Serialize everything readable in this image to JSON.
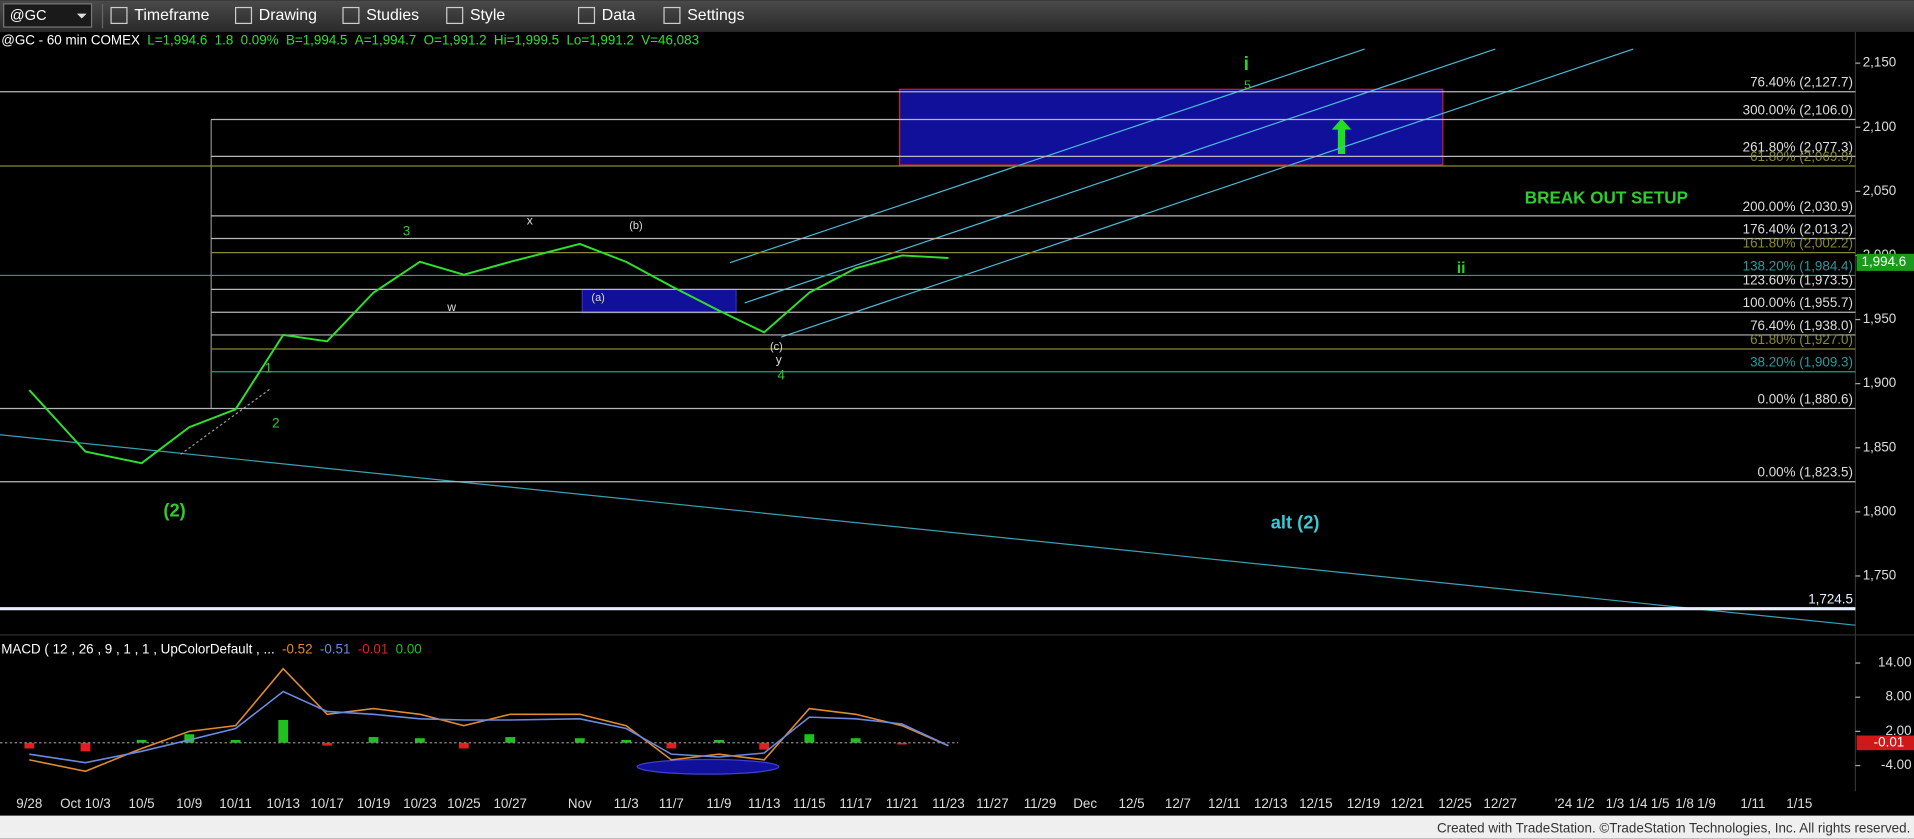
{
  "toolbar": {
    "symbol": "@GC",
    "items": [
      "Timeframe",
      "Drawing",
      "Studies",
      "Style",
      "Data",
      "Settings"
    ]
  },
  "chart_data": {
    "type": "line",
    "symbol_line": "@GC - 60 min  COMEX",
    "quote": [
      "L=1,994.6",
      "1.8",
      "0.09%",
      "B=1,994.5",
      "A=1,994.7",
      "O=1,991.2",
      "Hi=1,999.5",
      "Lo=1,991.2",
      "V=46,083"
    ],
    "categories": [
      "9/28",
      "Oct 10/3",
      "10/5",
      "10/9",
      "10/11",
      "10/13",
      "10/17",
      "10/19",
      "10/23",
      "10/25",
      "10/27",
      "Nov",
      "11/3",
      "11/7",
      "11/9",
      "11/13",
      "11/15",
      "11/17",
      "11/21",
      "11/23",
      "11/27",
      "11/29",
      "Dec",
      "12/5",
      "12/7",
      "12/11",
      "12/13",
      "12/15",
      "12/19",
      "12/21",
      "12/25",
      "12/27",
      "'24 1/2",
      "1/3",
      "1/4",
      "1/5",
      "1/8",
      "1/9",
      "1/11",
      "1/15"
    ],
    "series": [
      {
        "color": "#2ee02e",
        "values": [
          1895,
          1847,
          1838,
          1866,
          1880,
          1938,
          1933,
          1971,
          1995,
          1985,
          1995,
          2009,
          1995,
          1976,
          1957,
          1940,
          1971,
          1990,
          2000,
          1998,
          null,
          null,
          null,
          null,
          null,
          null,
          null,
          null,
          null,
          null,
          null,
          null,
          null,
          null,
          null,
          null,
          null,
          null,
          null,
          null
        ]
      }
    ],
    "ylim": [
      1704,
      2161
    ],
    "yticks": [
      {
        "value": 1750,
        "label": "1,750"
      },
      {
        "value": 1800,
        "label": "1,800"
      },
      {
        "value": 1850,
        "label": "1,850"
      },
      {
        "value": 1900,
        "label": "1,900"
      },
      {
        "value": 1950,
        "label": "1,950"
      },
      {
        "value": 2000,
        "label": "2,000"
      },
      {
        "value": 2050,
        "label": "2,050"
      },
      {
        "value": 2100,
        "label": "2,100"
      },
      {
        "value": 2150,
        "label": "2,150"
      }
    ],
    "last_price": {
      "value": 1994.6,
      "label": "1,994.6"
    },
    "levels": [
      {
        "value": 2127.7,
        "label": "76.40% (2,127.7)",
        "color": "#b8b8b8"
      },
      {
        "value": 2106.0,
        "label": "300.00% (2,106.0)",
        "color": "#b8b8b8"
      },
      {
        "value": 2077.3,
        "label": "261.80% (2,077.3)",
        "color": "#b8b8b8"
      },
      {
        "value": 2069.8,
        "label": "61.80% (2,069.8)",
        "color": "#8a8a30"
      },
      {
        "value": 2030.9,
        "label": "200.00% (2,030.9)",
        "color": "#b8b8b8"
      },
      {
        "value": 2013.2,
        "label": "176.40% (2,013.2)",
        "color": "#b8b8b8"
      },
      {
        "value": 2002.2,
        "label": "161.80% (2,002.2)",
        "color": "#8a8a30"
      },
      {
        "value": 1984.4,
        "label": "138.20% (1,984.4)",
        "color": "#2a9a9a"
      },
      {
        "value": 1973.5,
        "label": "123.60% (1,973.5)",
        "color": "#b8b8b8"
      },
      {
        "value": 1955.7,
        "label": "100.00% (1,955.7)",
        "color": "#b8b8b8"
      },
      {
        "value": 1938.0,
        "label": "76.40% (1,938.0)",
        "color": "#b8b8b8"
      },
      {
        "value": 1927.0,
        "label": "61.80% (1,927.0)",
        "color": "#8a8a30"
      },
      {
        "value": 1909.3,
        "label": "38.20% (1,909.3)",
        "color": "#2a9a9a"
      },
      {
        "value": 1880.6,
        "label": "0.00% (1,880.6)",
        "color": "#b8b8b8"
      },
      {
        "value": 1823.5,
        "label": "0.00% (1,823.5)",
        "color": "#b8b8b8"
      },
      {
        "value": 1724.5,
        "label": "1,724.5",
        "color": "#e8f0ff"
      }
    ],
    "annotations": [
      {
        "text": "i",
        "color": "#2ecc2e"
      },
      {
        "text": "5",
        "color": "#2ecc2e"
      },
      {
        "text": "BREAK OUT SETUP",
        "color": "#2ecc2e"
      },
      {
        "text": "ii",
        "color": "#2ecc2e"
      },
      {
        "text": "alt (2)",
        "color": "#3ac8d8"
      },
      {
        "text": "(2)",
        "color": "#2ecc2e"
      },
      {
        "text": "1",
        "color": "#2ecc2e"
      },
      {
        "text": "2",
        "color": "#2ecc2e"
      },
      {
        "text": "3",
        "color": "#2ecc2e"
      },
      {
        "text": "w",
        "color": "#dddddd"
      },
      {
        "text": "x",
        "color": "#dddddd"
      },
      {
        "text": "(a)",
        "color": "#dddddd"
      },
      {
        "text": "(b)",
        "color": "#dddddd"
      },
      {
        "text": "(c)",
        "color": "#dddddd"
      },
      {
        "text": "y",
        "color": "#dddddd"
      },
      {
        "text": "4",
        "color": "#2ecc2e"
      }
    ],
    "macd": {
      "title": "MACD ( 12 , 26 , 9 , 1 , 1 , UpColorDefault , ...",
      "readout": [
        "-0.52",
        "-0.51",
        "-0.01",
        "0.00"
      ],
      "readout_colors": [
        "#e08a30",
        "#6a8ae0",
        "#e02020",
        "#20c020"
      ],
      "ylim": [
        -7.86,
        17.86
      ],
      "yticks": [
        {
          "value": 14,
          "label": "14.00"
        },
        {
          "value": 8,
          "label": "8.00"
        },
        {
          "value": 2,
          "label": "2.00"
        },
        {
          "value": -4,
          "label": "-4.00"
        }
      ],
      "current": {
        "value": -0.01,
        "label": "-0.01"
      },
      "macd_line": {
        "color": "#e08a30",
        "values": [
          -3,
          -5,
          -1,
          2,
          3,
          13,
          5,
          6,
          5,
          3,
          5,
          5,
          3,
          -3,
          -2,
          -3,
          6,
          5,
          3,
          -0.52,
          null,
          null,
          null,
          null,
          null,
          null,
          null,
          null,
          null,
          null,
          null,
          null,
          null,
          null,
          null,
          null,
          null,
          null,
          null,
          null
        ]
      },
      "signal_line": {
        "color": "#6a8ae0",
        "values": [
          -2,
          -3.5,
          -1.5,
          0.5,
          2.5,
          9,
          5.5,
          5,
          4.2,
          4,
          4,
          4.2,
          2.5,
          -2,
          -2.5,
          -1.8,
          4.5,
          4.2,
          3.3,
          -0.51,
          null,
          null,
          null,
          null,
          null,
          null,
          null,
          null,
          null,
          null,
          null,
          null,
          null,
          null,
          null,
          null,
          null,
          null,
          null,
          null
        ]
      },
      "histogram": {
        "up_color": "#20c020",
        "down_color": "#e02020",
        "values": [
          -1,
          -1.5,
          0.5,
          1.5,
          0.5,
          4,
          -0.5,
          1,
          0.8,
          -1,
          1,
          0.8,
          0.5,
          -1,
          0.5,
          -1.2,
          1.5,
          0.8,
          -0.3,
          -0.01,
          null,
          null,
          null,
          null,
          null,
          null,
          null,
          null,
          null,
          null,
          null,
          null,
          null,
          null,
          null,
          null,
          null,
          null,
          null,
          null
        ]
      }
    },
    "footer": "Created with TradeStation. ©TradeStation Technologies, Inc. All rights reserved."
  }
}
